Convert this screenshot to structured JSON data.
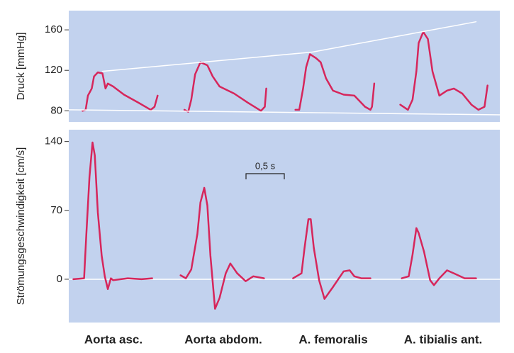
{
  "chart_data": [
    {
      "type": "line",
      "ylabel": "Druck [mmHg]",
      "xlim": [
        0,
        5.63
      ],
      "ylim": [
        69,
        179
      ],
      "yticks": [
        80,
        120,
        160
      ],
      "series": [
        {
          "color": "#d6265b",
          "x": [
            0.18,
            0.22,
            0.25,
            0.3,
            0.33,
            0.38,
            0.44,
            0.48,
            0.51,
            0.58,
            0.72,
            0.91,
            1.07,
            1.12,
            1.16
          ],
          "values": [
            80,
            81,
            95,
            102,
            114,
            118,
            117,
            102,
            107,
            104,
            96,
            88,
            81,
            84,
            95
          ]
        },
        {
          "color": "#d6265b",
          "x": [
            1.51,
            1.56,
            1.6,
            1.65,
            1.72,
            1.81,
            1.88,
            1.97,
            2.16,
            2.34,
            2.51,
            2.56,
            2.58
          ],
          "values": [
            81,
            79,
            91,
            116,
            128,
            125,
            114,
            104,
            97,
            88,
            80,
            84,
            102
          ]
        },
        {
          "color": "#d6265b",
          "x": [
            2.96,
            3.01,
            3.06,
            3.1,
            3.15,
            3.23,
            3.29,
            3.36,
            3.45,
            3.59,
            3.73,
            3.87,
            3.94,
            3.96,
            3.99
          ],
          "values": [
            81,
            81,
            102,
            123,
            136,
            132,
            128,
            112,
            100,
            96,
            95,
            84,
            81,
            84,
            107
          ]
        },
        {
          "color": "#d6265b",
          "x": [
            4.33,
            4.43,
            4.49,
            4.54,
            4.57,
            4.63,
            4.69,
            4.75,
            4.84,
            4.94,
            5.03,
            5.14,
            5.26,
            5.35,
            5.43,
            5.47
          ],
          "values": [
            86,
            81,
            91,
            119,
            147,
            158,
            151,
            119,
            95,
            100,
            102,
            97,
            86,
            81,
            84,
            105
          ]
        },
        {
          "color": "#ffffff",
          "x": [
            0.44,
            3.18,
            5.32
          ],
          "values": [
            119,
            138,
            168
          ]
        },
        {
          "color": "#ffffff",
          "x": [
            0,
            5.63
          ],
          "values": [
            81,
            76
          ]
        }
      ]
    },
    {
      "type": "line",
      "ylabel": "Strömungsgeschwindigkeit [cm/s]",
      "xlim": [
        0,
        5.63
      ],
      "ylim": [
        -44,
        152
      ],
      "yticks": [
        0,
        70,
        140
      ],
      "zero_line": true,
      "scale_bar": {
        "label": "0,5 s",
        "value": 0.5
      },
      "categories": [
        "Aorta asc.",
        "Aorta abdom.",
        "A. femoralis",
        "A. tibialis ant."
      ],
      "series": [
        {
          "color": "#d6265b",
          "x": [
            0.06,
            0.2,
            0.23,
            0.27,
            0.31,
            0.34,
            0.38,
            0.43,
            0.47,
            0.51,
            0.55,
            0.58,
            0.77,
            0.95,
            1.09
          ],
          "values": [
            0,
            1,
            46,
            104,
            139,
            126,
            68,
            24,
            3,
            -10,
            1,
            -1,
            1,
            0,
            1
          ]
        },
        {
          "color": "#d6265b",
          "x": [
            1.46,
            1.53,
            1.6,
            1.68,
            1.72,
            1.77,
            1.81,
            1.85,
            1.91,
            1.97,
            2.05,
            2.11,
            2.2,
            2.31,
            2.41,
            2.55
          ],
          "values": [
            4,
            1,
            10,
            46,
            78,
            93,
            75,
            24,
            -30,
            -19,
            6,
            16,
            6,
            -2,
            3,
            1
          ]
        },
        {
          "color": "#d6265b",
          "x": [
            2.93,
            3.04,
            3.08,
            3.13,
            3.16,
            3.2,
            3.27,
            3.34,
            3.45,
            3.59,
            3.67,
            3.73,
            3.82,
            3.94
          ],
          "values": [
            1,
            6,
            32,
            61,
            61,
            32,
            -1,
            -20,
            -8,
            8,
            9,
            3,
            1,
            1
          ]
        },
        {
          "color": "#d6265b",
          "x": [
            4.35,
            4.44,
            4.49,
            4.54,
            4.57,
            4.64,
            4.72,
            4.77,
            4.84,
            4.94,
            5.03,
            5.17,
            5.32
          ],
          "values": [
            1,
            3,
            25,
            52,
            47,
            28,
            -1,
            -6,
            1,
            9,
            6,
            1,
            1
          ]
        }
      ]
    }
  ]
}
